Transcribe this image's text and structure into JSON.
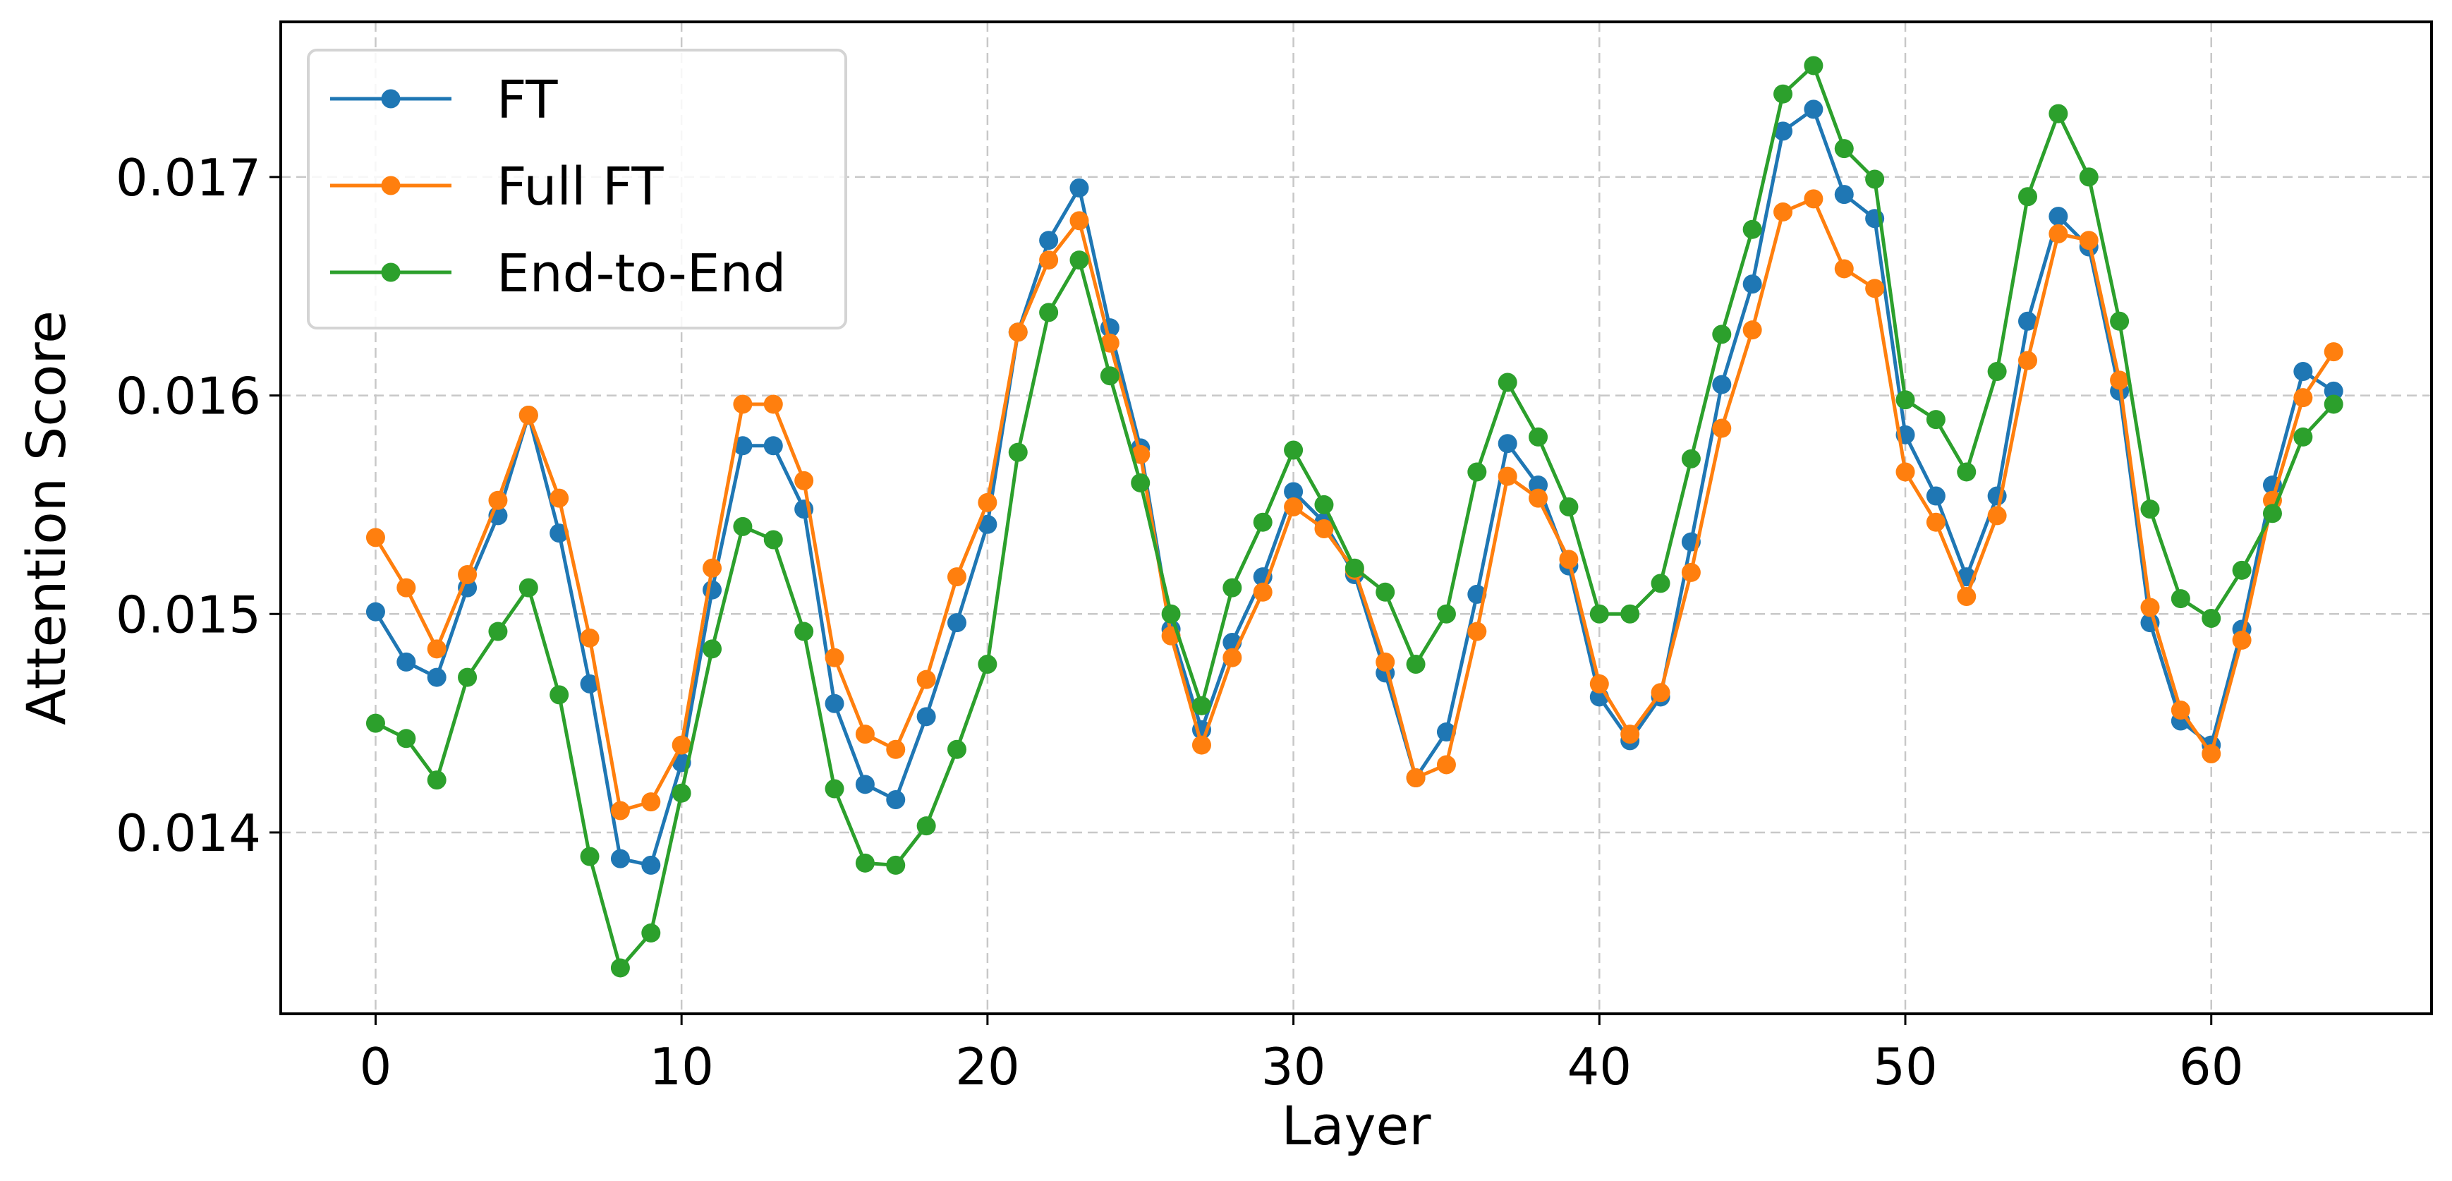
{
  "chart_data": {
    "type": "line",
    "title": "",
    "xlabel": "Layer",
    "ylabel": "Attention Score",
    "xlim": [
      -3.1,
      67.2
    ],
    "ylim": [
      0.01317,
      0.01771
    ],
    "xticks": [
      0,
      10,
      20,
      30,
      40,
      50,
      60
    ],
    "xtick_labels": [
      "0",
      "10",
      "20",
      "30",
      "40",
      "50",
      "60"
    ],
    "yticks": [
      0.014,
      0.015,
      0.016,
      0.017
    ],
    "ytick_labels": [
      "0.014",
      "0.015",
      "0.016",
      "0.017"
    ],
    "grid": true,
    "legend_position": "upper left",
    "x": [
      0,
      1,
      2,
      3,
      4,
      5,
      6,
      7,
      8,
      9,
      10,
      11,
      12,
      13,
      14,
      15,
      16,
      17,
      18,
      19,
      20,
      21,
      22,
      23,
      24,
      25,
      26,
      27,
      28,
      29,
      30,
      31,
      32,
      33,
      34,
      35,
      36,
      37,
      38,
      39,
      40,
      41,
      42,
      43,
      44,
      45,
      46,
      47,
      48,
      49,
      50,
      51,
      52,
      53,
      54,
      55,
      56,
      57,
      58,
      59,
      60,
      61,
      62,
      63,
      64
    ],
    "series": [
      {
        "name": "FT",
        "color": "#1f77b4",
        "values": [
          0.01501,
          0.01478,
          0.01471,
          0.01512,
          0.01545,
          0.01591,
          0.01537,
          0.01468,
          0.01388,
          0.01385,
          0.01432,
          0.01511,
          0.01577,
          0.01577,
          0.01548,
          0.01459,
          0.01422,
          0.01415,
          0.01453,
          0.01496,
          0.01541,
          0.01629,
          0.01671,
          0.01695,
          0.01631,
          0.01576,
          0.01493,
          0.01447,
          0.01487,
          0.01517,
          0.01556,
          0.01542,
          0.01518,
          0.01473,
          0.01425,
          0.01446,
          0.01509,
          0.01578,
          0.01559,
          0.01522,
          0.01462,
          0.01442,
          0.01462,
          0.01533,
          0.01605,
          0.01651,
          0.01721,
          0.01731,
          0.01692,
          0.01681,
          0.01582,
          0.01554,
          0.01517,
          0.01554,
          0.01634,
          0.01682,
          0.01668,
          0.01602,
          0.01496,
          0.01451,
          0.0144,
          0.01493,
          0.01559,
          0.01611,
          0.01602
        ]
      },
      {
        "name": "Full FT",
        "color": "#ff7f0e",
        "values": [
          0.01535,
          0.01512,
          0.01484,
          0.01518,
          0.01552,
          0.01591,
          0.01553,
          0.01489,
          0.0141,
          0.01414,
          0.0144,
          0.01521,
          0.01596,
          0.01596,
          0.01561,
          0.0148,
          0.01445,
          0.01438,
          0.0147,
          0.01517,
          0.01551,
          0.01629,
          0.01662,
          0.0168,
          0.01624,
          0.01573,
          0.0149,
          0.0144,
          0.0148,
          0.0151,
          0.01549,
          0.01539,
          0.0152,
          0.01478,
          0.01425,
          0.01431,
          0.01492,
          0.01563,
          0.01553,
          0.01525,
          0.01468,
          0.01445,
          0.01464,
          0.01519,
          0.01585,
          0.0163,
          0.01684,
          0.0169,
          0.01658,
          0.01649,
          0.01565,
          0.01542,
          0.01508,
          0.01545,
          0.01616,
          0.01674,
          0.01671,
          0.01607,
          0.01503,
          0.01456,
          0.01436,
          0.01488,
          0.01552,
          0.01599,
          0.0162
        ]
      },
      {
        "name": "End-to-End",
        "color": "#2ca02c",
        "values": [
          0.0145,
          0.01443,
          0.01424,
          0.01471,
          0.01492,
          0.01512,
          0.01463,
          0.01389,
          0.01338,
          0.01354,
          0.01418,
          0.01484,
          0.0154,
          0.01534,
          0.01492,
          0.0142,
          0.01386,
          0.01385,
          0.01403,
          0.01438,
          0.01477,
          0.01574,
          0.01638,
          0.01662,
          0.01609,
          0.0156,
          0.015,
          0.01458,
          0.01512,
          0.01542,
          0.01575,
          0.0155,
          0.01521,
          0.0151,
          0.01477,
          0.015,
          0.01565,
          0.01606,
          0.01581,
          0.01549,
          0.015,
          0.015,
          0.01514,
          0.01571,
          0.01628,
          0.01676,
          0.01738,
          0.01751,
          0.01713,
          0.01699,
          0.01598,
          0.01589,
          0.01565,
          0.01611,
          0.01691,
          0.01729,
          0.017,
          0.01634,
          0.01548,
          0.01507,
          0.01498,
          0.0152,
          0.01546,
          0.01581,
          0.01596
        ]
      }
    ]
  },
  "legend": {
    "items": [
      {
        "label": "FT",
        "color": "#1f77b4"
      },
      {
        "label": "Full FT",
        "color": "#ff7f0e"
      },
      {
        "label": "End-to-End",
        "color": "#2ca02c"
      }
    ]
  },
  "axes": {
    "xlabel": "Layer",
    "ylabel": "Attention Score"
  }
}
